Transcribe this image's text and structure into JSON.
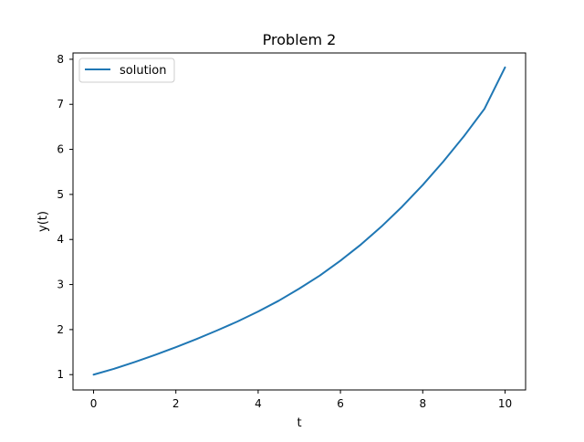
{
  "chart_data": {
    "type": "line",
    "title": "Problem 2",
    "xlabel": "t",
    "ylabel": "y(t)",
    "xlim": [
      -0.5,
      10.5
    ],
    "ylim": [
      0.66,
      8.14
    ],
    "xticks": [
      0,
      2,
      4,
      6,
      8,
      10
    ],
    "yticks": [
      1,
      2,
      3,
      4,
      5,
      6,
      7,
      8
    ],
    "xtick_labels": [
      "0",
      "2",
      "4",
      "6",
      "8",
      "10"
    ],
    "ytick_labels": [
      "1",
      "2",
      "3",
      "4",
      "5",
      "6",
      "7",
      "8"
    ],
    "grid": false,
    "legend": {
      "position": "upper-left",
      "entries": [
        "solution"
      ]
    },
    "series": [
      {
        "name": "solution",
        "color": "#1f77b4",
        "x": [
          0,
          0.5,
          1,
          1.5,
          2,
          2.5,
          3,
          3.5,
          4,
          4.5,
          5,
          5.5,
          6,
          6.5,
          7,
          7.5,
          8,
          8.5,
          9,
          9.5,
          10
        ],
        "y": [
          1.0,
          1.13,
          1.28,
          1.44,
          1.61,
          1.79,
          1.98,
          2.18,
          2.4,
          2.64,
          2.91,
          3.2,
          3.53,
          3.89,
          4.29,
          4.73,
          5.21,
          5.73,
          6.29,
          6.9,
          7.82
        ]
      }
    ]
  }
}
